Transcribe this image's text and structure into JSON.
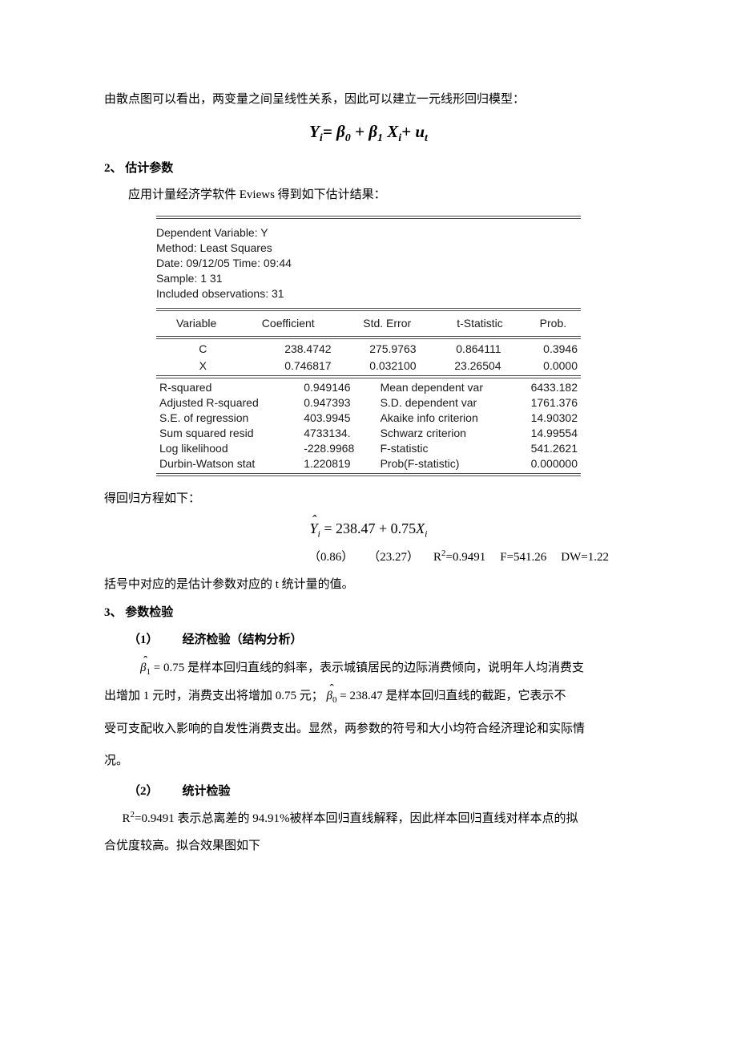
{
  "intro_line": "由散点图可以看出，两变量之间呈线性关系，因此可以建立一元线形回归模型：",
  "model_eq": {
    "Yi": "Y",
    "eq": "= β",
    "b0": "0",
    "plus": "+ β",
    "b1": "1",
    "X": " X",
    "isub": "i",
    "plus_u": "+ u",
    "tsub": "t"
  },
  "sec2_head": "2、 估计参数",
  "sec2_line": "应用计量经济学软件 Eviews 得到如下估计结果：",
  "eviews": {
    "header": [
      "Dependent Variable: Y",
      "Method: Least Squares",
      "Date: 09/12/05   Time: 09:44",
      "Sample: 1 31",
      "Included observations: 31"
    ],
    "col_headers": [
      "Variable",
      "Coefficient",
      "Std. Error",
      "t-Statistic",
      "Prob."
    ],
    "coef_rows": [
      [
        "C",
        "238.4742",
        "275.9763",
        "0.864111",
        "0.3946"
      ],
      [
        "X",
        "0.746817",
        "0.032100",
        "23.26504",
        "0.0000"
      ]
    ],
    "stats_rows": [
      [
        "R-squared",
        "0.949146",
        "Mean dependent var",
        "6433.182"
      ],
      [
        "Adjusted R-squared",
        "0.947393",
        "S.D. dependent var",
        "1761.376"
      ],
      [
        "S.E. of regression",
        "403.9945",
        "Akaike info criterion",
        "14.90302"
      ],
      [
        "Sum squared resid",
        "4733134.",
        "Schwarz criterion",
        "14.99554"
      ],
      [
        "Log likelihood",
        "-228.9968",
        "F-statistic",
        "541.2621"
      ],
      [
        "Durbin-Watson stat",
        "1.220819",
        "Prob(F-statistic)",
        "0.000000"
      ]
    ]
  },
  "after_table": "得回归方程如下：",
  "regr_eq_text": {
    "Y": "Y",
    "isub": "i",
    "rhs": " = 238.47 + 0.75",
    "X": "X",
    "isub2": "i"
  },
  "stats_line": {
    "t1": "（0.86）",
    "t2": "（23.27）",
    "r2_label": "R",
    "r2_val": "=0.9491",
    "f": "F=541.26",
    "dw": "DW=1.22"
  },
  "bracket_note": "括号中对应的是估计参数对应的 t 统计量的值。",
  "sec3_head": "3、 参数检验",
  "sub1_num": "（1）",
  "sub1_title": "经济检验（结构分析）",
  "econ_text_1a": " = 0.75 是样本回归直线的斜率，表示城镇居民的边际消费倾向，说明年人均消费支",
  "econ_text_1b": "出增加 1 元时，消费支出将增加 0.75 元；",
  "econ_text_1c": " = 238.47 是样本回归直线的截距，它表示不",
  "econ_text_1d": "受可支配收入影响的自发性消费支出。显然，两参数的符号和大小均符合经济理论和实际情",
  "econ_text_1e": "况。",
  "sub2_num": "（2）",
  "sub2_title": "统计检验",
  "stat_text": "=0.9491 表示总离差的 94.91%被样本回归直线解释，因此样本回归直线对样本点的拟",
  "stat_text2": "合优度较高。拟合效果图如下"
}
